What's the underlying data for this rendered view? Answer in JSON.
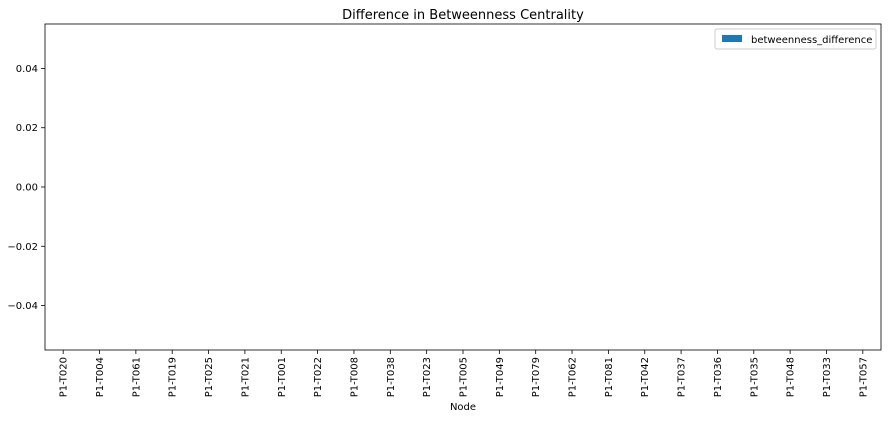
{
  "chart_data": {
    "type": "bar",
    "title": "Difference in Betweenness Centrality",
    "xlabel": "Node",
    "ylabel": "",
    "categories": [
      "P1-T020",
      "P1-T004",
      "P1-T061",
      "P1-T019",
      "P1-T025",
      "P1-T021",
      "P1-T001",
      "P1-T022",
      "P1-T008",
      "P1-T038",
      "P1-T023",
      "P1-T005",
      "P1-T049",
      "P1-T079",
      "P1-T062",
      "P1-T081",
      "P1-T042",
      "P1-T037",
      "P1-T036",
      "P1-T035",
      "P1-T048",
      "P1-T033",
      "P1-T057"
    ],
    "series": [
      {
        "name": "betweenness_difference",
        "color": "#1f77b4",
        "values": [
          0,
          0,
          0,
          0,
          0,
          0,
          0,
          0,
          0,
          0,
          0,
          0,
          0,
          0,
          0,
          0,
          0,
          0,
          0,
          0,
          0,
          0,
          0
        ]
      }
    ],
    "ylim": [
      -0.055,
      0.055
    ],
    "yticks": [
      0.04,
      0.02,
      0.0,
      -0.02,
      -0.04
    ],
    "ytick_labels": [
      "0.04",
      "0.02",
      "0.00",
      "−0.02",
      "−0.04"
    ],
    "grid": false,
    "legend_position": "top-right"
  }
}
